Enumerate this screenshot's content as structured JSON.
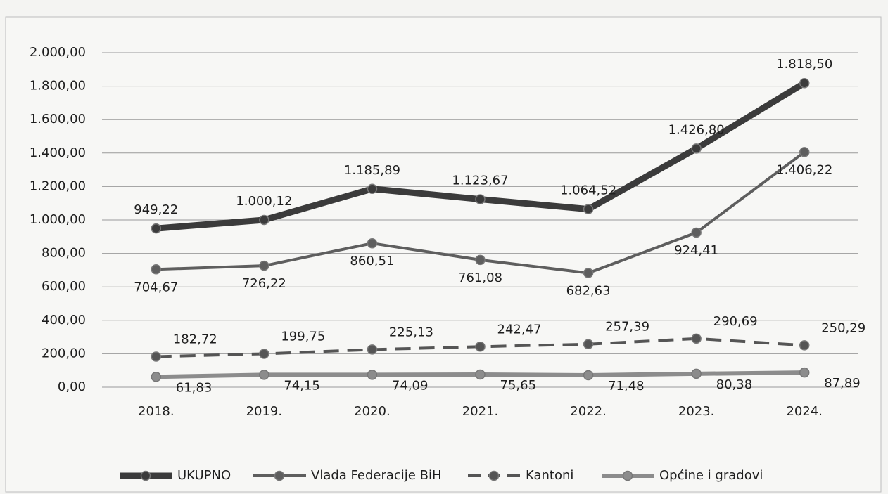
{
  "chart_data": {
    "type": "line",
    "categories": [
      "2018.",
      "2019.",
      "2020.",
      "2021.",
      "2022.",
      "2023.",
      "2024."
    ],
    "ylim": [
      0,
      2000
    ],
    "yticks": [
      {
        "value": 0,
        "label": "0,00"
      },
      {
        "value": 200,
        "label": "200,00"
      },
      {
        "value": 400,
        "label": "400,00"
      },
      {
        "value": 600,
        "label": "600,00"
      },
      {
        "value": 800,
        "label": "800,00"
      },
      {
        "value": 1000,
        "label": "1.000,00"
      },
      {
        "value": 1200,
        "label": "1.200,00"
      },
      {
        "value": 1400,
        "label": "1.400,00"
      },
      {
        "value": 1600,
        "label": "1.600,00"
      },
      {
        "value": 1800,
        "label": "1.800,00"
      },
      {
        "value": 2000,
        "label": "2.000,00"
      }
    ],
    "grid": true,
    "legend": "bottom",
    "series": [
      {
        "name": "UKUPNO",
        "color": "#3b3b3b",
        "line_style": "solid",
        "values": [
          949.22,
          1000.12,
          1185.89,
          1123.67,
          1064.52,
          1426.8,
          1818.5
        ],
        "value_labels": [
          "949,22",
          "1.000,12",
          "1.185,89",
          "1.123,67",
          "1.064,52",
          "1.426,80",
          "1.818,50"
        ]
      },
      {
        "name": "Vlada Federacije BiH",
        "color": "#5e5e5e",
        "line_style": "solid",
        "values": [
          704.67,
          726.22,
          860.51,
          761.08,
          682.63,
          924.41,
          1406.22
        ],
        "value_labels": [
          "704,67",
          "726,22",
          "860,51",
          "761,08",
          "682,63",
          "924,41",
          "1.406,22"
        ]
      },
      {
        "name": "Kantoni",
        "color": "#555555",
        "line_style": "dashed",
        "values": [
          182.72,
          199.75,
          225.13,
          242.47,
          257.39,
          290.69,
          250.29
        ],
        "value_labels": [
          "182,72",
          "199,75",
          "225,13",
          "242,47",
          "257,39",
          "290,69",
          "250,29"
        ]
      },
      {
        "name": "Općine i gradovi",
        "color": "#8c8c8c",
        "line_style": "solid",
        "values": [
          61.83,
          74.15,
          74.09,
          75.65,
          71.48,
          80.38,
          87.89
        ],
        "value_labels": [
          "61,83",
          "74,15",
          "74,09",
          "75,65",
          "71,48",
          "80,38",
          "87,89"
        ]
      }
    ]
  }
}
